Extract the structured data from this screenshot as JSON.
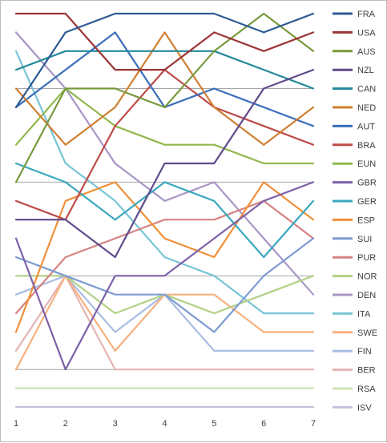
{
  "chart_data": {
    "type": "line",
    "title": "",
    "xlabel": "",
    "ylabel": "",
    "x": [
      1,
      2,
      3,
      4,
      5,
      6,
      7
    ],
    "ylim": [
      0,
      21
    ],
    "y_inverted": true,
    "y_tick_labels_shown": false,
    "grid": {
      "horizontal": true,
      "vertical": false,
      "y_interval": 5
    },
    "legend_position": "right",
    "series": [
      {
        "name": "FRA",
        "color": "#2e5b94",
        "values": [
          6,
          2,
          1,
          1,
          1,
          2,
          1
        ]
      },
      {
        "name": "USA",
        "color": "#9c3535",
        "values": [
          1,
          1,
          4,
          4,
          2,
          3,
          2
        ]
      },
      {
        "name": "AUS",
        "color": "#789a3d",
        "values": [
          10,
          5,
          5,
          6,
          3,
          1,
          3
        ]
      },
      {
        "name": "NZL",
        "color": "#5f4a8b",
        "values": [
          12,
          12,
          14,
          9,
          9,
          5,
          4
        ]
      },
      {
        "name": "CAN",
        "color": "#23899a",
        "values": [
          4,
          3,
          3,
          3,
          3,
          4,
          5
        ]
      },
      {
        "name": "NED",
        "color": "#d07f32",
        "values": [
          5,
          8,
          6,
          2,
          6,
          8,
          6
        ]
      },
      {
        "name": "AUT",
        "color": "#3a6dbb",
        "values": [
          6,
          4,
          2,
          6,
          5,
          6,
          7
        ]
      },
      {
        "name": "BRA",
        "color": "#bf4b49",
        "values": [
          11,
          12,
          7,
          4,
          6,
          7,
          8
        ]
      },
      {
        "name": "EUN",
        "color": "#91b84d",
        "values": [
          8,
          5,
          7,
          8,
          8,
          9,
          9
        ]
      },
      {
        "name": "GBR",
        "color": "#7d62a8",
        "values": [
          13,
          20,
          15,
          15,
          13,
          11,
          10
        ]
      },
      {
        "name": "GER",
        "color": "#3aa8bf",
        "values": [
          9,
          10,
          12,
          10,
          11,
          14,
          11
        ]
      },
      {
        "name": "ESP",
        "color": "#f0903a",
        "values": [
          18,
          11,
          10,
          13,
          14,
          10,
          12
        ]
      },
      {
        "name": "SUI",
        "color": "#7d9bd3",
        "values": [
          14,
          15,
          16,
          16,
          18,
          15,
          13
        ]
      },
      {
        "name": "PUR",
        "color": "#d48482",
        "values": [
          17,
          14,
          13,
          12,
          12,
          11,
          13
        ]
      },
      {
        "name": "NOR",
        "color": "#b2d185",
        "values": [
          15,
          15,
          17,
          16,
          17,
          16,
          15
        ]
      },
      {
        "name": "DEN",
        "color": "#a996c6",
        "values": [
          2,
          5,
          9,
          11,
          10,
          13,
          16
        ]
      },
      {
        "name": "ITA",
        "color": "#78c5d6",
        "values": [
          3,
          9,
          11,
          14,
          15,
          17,
          17
        ]
      },
      {
        "name": "SWE",
        "color": "#f7b07f",
        "values": [
          20,
          15,
          19,
          16,
          16,
          18,
          18
        ]
      },
      {
        "name": "FIN",
        "color": "#a9bde3",
        "values": [
          16,
          15,
          18,
          16,
          19,
          19,
          19
        ]
      },
      {
        "name": "BER",
        "color": "#e3b5b4",
        "values": [
          19,
          15,
          20,
          20,
          20,
          20,
          20
        ]
      },
      {
        "name": "RSA",
        "color": "#cfe3b3",
        "values": [
          21,
          21,
          21,
          21,
          21,
          21,
          21
        ]
      },
      {
        "name": "ISV",
        "color": "#c9bfdc",
        "values": [
          22,
          22,
          22,
          22,
          22,
          22,
          22
        ]
      }
    ]
  }
}
